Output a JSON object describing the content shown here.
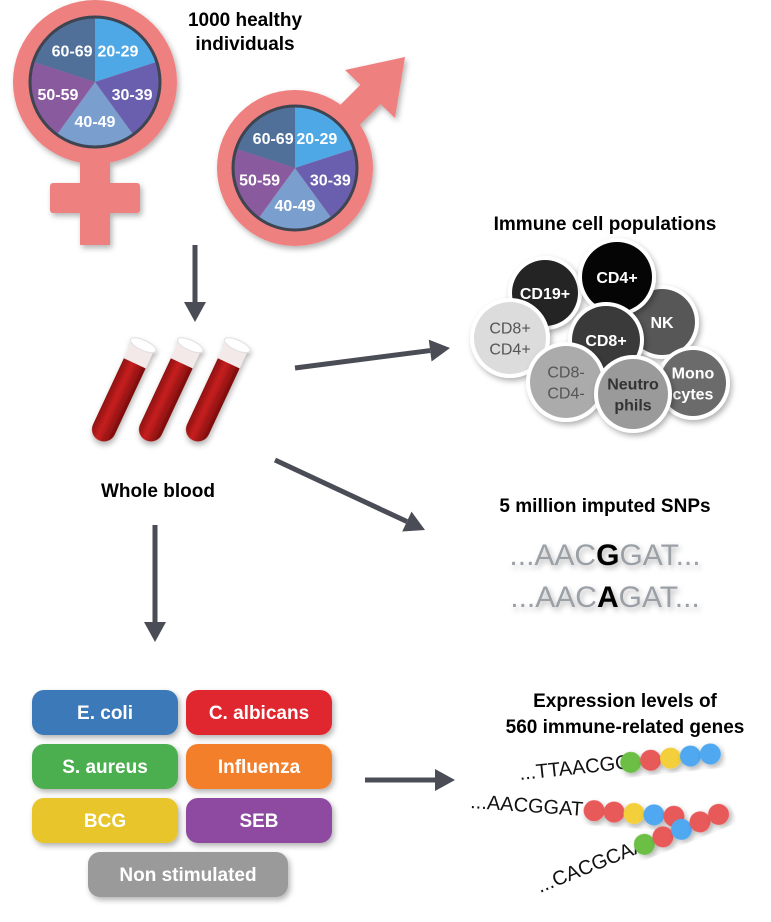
{
  "title": {
    "line1": "1000 healthy",
    "line2": "individuals"
  },
  "age_groups": [
    {
      "label": "20-29",
      "color": "#4fa8e6"
    },
    {
      "label": "30-39",
      "color": "#6a5fae"
    },
    {
      "label": "40-49",
      "color": "#7a9fcf"
    },
    {
      "label": "50-59",
      "color": "#8a5a9e"
    },
    {
      "label": "60-69",
      "color": "#517099"
    }
  ],
  "symbol_color": "#ee8080",
  "arrow_color": "#4a4d55",
  "whole_blood": "Whole blood",
  "immune": {
    "title": "Immune cell populations",
    "cells": [
      {
        "lines": [
          "CD19+"
        ],
        "fill": "#242424",
        "text": "#ffffff"
      },
      {
        "lines": [
          "NK"
        ],
        "fill": "#575757",
        "text": "#ffffff"
      },
      {
        "lines": [
          "CD4+"
        ],
        "fill": "#050505",
        "text": "#ffffff"
      },
      {
        "lines": [
          "CD8+",
          "CD4+"
        ],
        "fill": "#dcdcdc",
        "text": "#555555"
      },
      {
        "lines": [
          "CD8+"
        ],
        "fill": "#3a3a3a",
        "text": "#ffffff"
      },
      {
        "lines": [
          "Mono",
          "cytes"
        ],
        "fill": "#6b6b6b",
        "text": "#ffffff"
      },
      {
        "lines": [
          "CD8-",
          "CD4-"
        ],
        "fill": "#ababab",
        "text": "#555555"
      },
      {
        "lines": [
          "Neutro",
          "phils"
        ],
        "fill": "#9a9a9a",
        "text": "#333333"
      }
    ]
  },
  "snps": {
    "title": "5 million imputed SNPs",
    "seq1": {
      "pre": "...AAC",
      "alt": "G",
      "post": "GAT..."
    },
    "seq2": {
      "pre": "...AAC",
      "alt": "A",
      "post": "GAT..."
    }
  },
  "stimuli": [
    {
      "label": "E. coli",
      "color": "#3a79b8"
    },
    {
      "label": "C. albicans",
      "color": "#e0282e"
    },
    {
      "label": "S. aureus",
      "color": "#4caf4f"
    },
    {
      "label": "Influenza",
      "color": "#f47f2b"
    },
    {
      "label": "BCG",
      "color": "#e8c52b"
    },
    {
      "label": "SEB",
      "color": "#8e4aa0"
    },
    {
      "label": "Non stimulated",
      "color": "#9a9a9a"
    }
  ],
  "expression": {
    "title1": "Expression levels of",
    "title2": "560 immune-related genes",
    "strands": [
      {
        "seq": "...TTAACGG",
        "beads": [
          "#6cbf45",
          "#e85a5a",
          "#f2cf3a",
          "#4fa8f0",
          "#4fa8f0"
        ]
      },
      {
        "seq": "...AACGGAT",
        "beads": [
          "#e85a5a",
          "#e85a5a",
          "#f2cf3a",
          "#4fa8f0",
          "#e85a5a"
        ]
      },
      {
        "seq": "...CACGCAA",
        "beads": [
          "#6cbf45",
          "#e85a5a",
          "#4fa8f0",
          "#e85a5a",
          "#e85a5a"
        ]
      }
    ]
  }
}
